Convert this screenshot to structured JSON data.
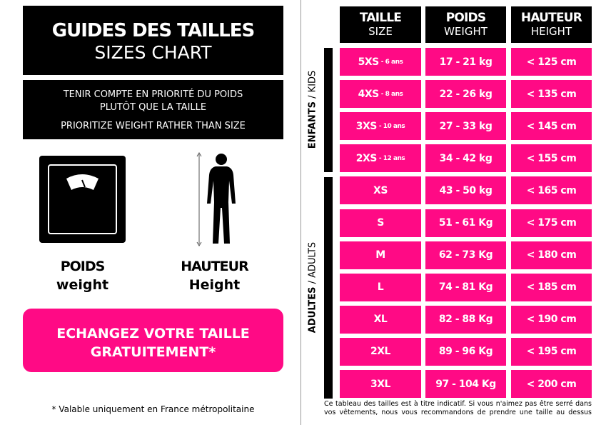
{
  "left": {
    "title": "GUIDES DES TAILLES",
    "subtitle": "SIZES CHART",
    "note_fr_1": "TENIR COMPTE EN PRIORITÉ DU POIDS",
    "note_fr_2": "PLUTÔT QUE LA TAILLE",
    "note_en": "PRIORITIZE WEIGHT RATHER THAN SIZE",
    "weight_fr": "POIDS",
    "weight_en": "weight",
    "height_fr": "HAUTEUR",
    "height_en": "Height",
    "exchange_1": "ECHANGEZ VOTRE TAILLE",
    "exchange_2": "GRATUITEMENT*",
    "footnote": "* Valable uniquement en France métropolitaine"
  },
  "colors": {
    "accent": "#ff0a85",
    "black": "#000000"
  },
  "table": {
    "headers": [
      {
        "fr": "TAILLE",
        "en": "SIZE"
      },
      {
        "fr": "POIDS",
        "en": "WEIGHT"
      },
      {
        "fr": "HAUTEUR",
        "en": "HEIGHT"
      }
    ],
    "group_kids": {
      "bold": "ENFANTS",
      "rest": " / KIDS"
    },
    "group_adults": {
      "bold": "ADULTES",
      "rest": " / ADULTS"
    },
    "rows": [
      {
        "size": "5XS",
        "age": "- 6 ans",
        "weight": "17 - 21 kg",
        "height": "< 125 cm"
      },
      {
        "size": "4XS",
        "age": "- 8 ans",
        "weight": "22 - 26 kg",
        "height": "< 135 cm"
      },
      {
        "size": "3XS",
        "age": "- 10 ans",
        "weight": "27 - 33 kg",
        "height": "< 145 cm"
      },
      {
        "size": "2XS",
        "age": "- 12 ans",
        "weight": "34 - 42 kg",
        "height": "< 155 cm"
      },
      {
        "size": "XS",
        "age": "",
        "weight": "43 - 50 kg",
        "height": "< 165 cm"
      },
      {
        "size": "S",
        "age": "",
        "weight": "51 - 61 Kg",
        "height": "< 175 cm"
      },
      {
        "size": "M",
        "age": "",
        "weight": "62 - 73 Kg",
        "height": "< 180 cm"
      },
      {
        "size": "L",
        "age": "",
        "weight": "74 - 81 Kg",
        "height": "< 185 cm"
      },
      {
        "size": "XL",
        "age": "",
        "weight": "82 - 88 Kg",
        "height": "< 190 cm"
      },
      {
        "size": "2XL",
        "age": "",
        "weight": "89 - 96 Kg",
        "height": "< 195 cm"
      },
      {
        "size": "3XL",
        "age": "",
        "weight": "97 - 104 Kg",
        "height": "< 200 cm"
      }
    ],
    "disclaimer": "Ce tableau des tailles est à titre indicatif. Si vous n'aimez pas être serré dans vos vêtements, nous vous recommandons de prendre une taille au dessus"
  }
}
